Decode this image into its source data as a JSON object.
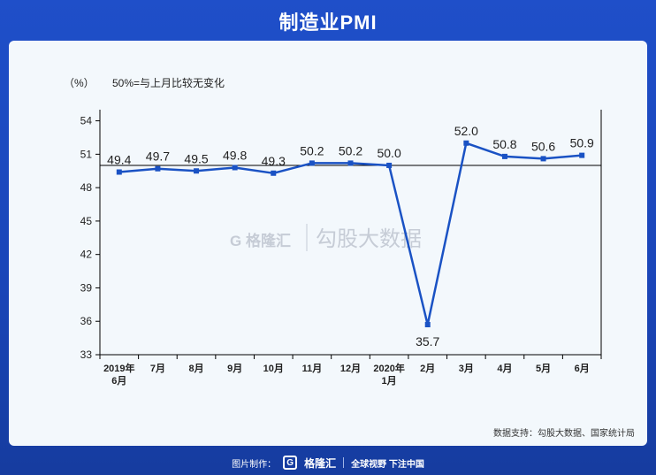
{
  "header": {
    "title": "制造业PMI"
  },
  "chart_data": {
    "type": "line",
    "unit_label": "（%）",
    "legend_note": "50%=与上月比较无变化",
    "categories": [
      [
        "2019年",
        "6月"
      ],
      [
        "7月"
      ],
      [
        "8月"
      ],
      [
        "9月"
      ],
      [
        "10月"
      ],
      [
        "11月"
      ],
      [
        "12月"
      ],
      [
        "2020年",
        "1月"
      ],
      [
        "2月"
      ],
      [
        "3月"
      ],
      [
        "4月"
      ],
      [
        "5月"
      ],
      [
        "6月"
      ]
    ],
    "series": [
      {
        "values": [
          49.4,
          49.7,
          49.5,
          49.8,
          49.3,
          50.2,
          50.2,
          50.0,
          35.7,
          52.0,
          50.8,
          50.6,
          50.9
        ]
      }
    ],
    "data_labels": [
      "49.4",
      "49.7",
      "49.5",
      "49.8",
      "49.3",
      "50.2",
      "50.2",
      "50.0",
      "35.7",
      "52.0",
      "50.8",
      "50.6",
      "50.9"
    ],
    "yticks": [
      "54",
      "51",
      "48",
      "45",
      "42",
      "39",
      "36",
      "33"
    ],
    "ylim": [
      33,
      55
    ],
    "reference_line": 50,
    "line_color": "#1a52c4",
    "grid": false
  },
  "watermark": {
    "brand": "格隆汇",
    "text": "勾股大数据"
  },
  "source": "数据支持：勾股大数据、国家统计局",
  "footer": {
    "made_by": "图片制作：",
    "logo_letter": "G",
    "brand": "格隆汇",
    "slogan": "全球视野 下注中国"
  }
}
